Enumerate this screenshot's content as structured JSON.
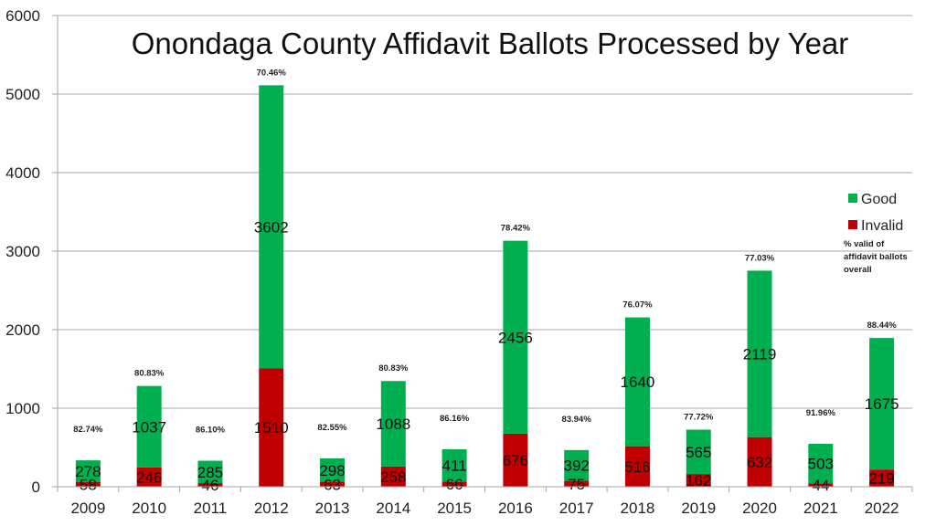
{
  "chart_data": {
    "type": "bar",
    "stacked": true,
    "title": "Onondaga County Affidavit Ballots Processed by Year",
    "xlabel": "",
    "ylabel": "",
    "ylim": [
      0,
      6000
    ],
    "yticks": [
      0,
      1000,
      2000,
      3000,
      4000,
      5000,
      6000
    ],
    "grid": true,
    "categories": [
      "2009",
      "2010",
      "2011",
      "2012",
      "2013",
      "2014",
      "2015",
      "2016",
      "2017",
      "2018",
      "2019",
      "2020",
      "2021",
      "2022"
    ],
    "series": [
      {
        "name": "Invalid",
        "color": "#c00000",
        "values": [
          58,
          246,
          46,
          1510,
          63,
          258,
          66,
          676,
          75,
          516,
          162,
          632,
          44,
          219
        ]
      },
      {
        "name": "Good",
        "color": "#00b050",
        "values": [
          278,
          1037,
          285,
          3602,
          298,
          1088,
          411,
          2456,
          392,
          1640,
          565,
          2119,
          503,
          1675
        ]
      }
    ],
    "annotations": {
      "label": "% valid of affidavit ballots overall",
      "percent_valid": [
        "82.74%",
        "80.83%",
        "86.10%",
        "70.46%",
        "82.55%",
        "80.83%",
        "86.16%",
        "78.42%",
        "83.94%",
        "76.07%",
        "77.72%",
        "77.03%",
        "91.96%",
        "88.44%"
      ]
    },
    "legend": {
      "placement": "right",
      "entries": [
        "Good",
        "Invalid"
      ],
      "note": [
        "% valid of",
        "affidavit ballots",
        "overall"
      ]
    }
  }
}
